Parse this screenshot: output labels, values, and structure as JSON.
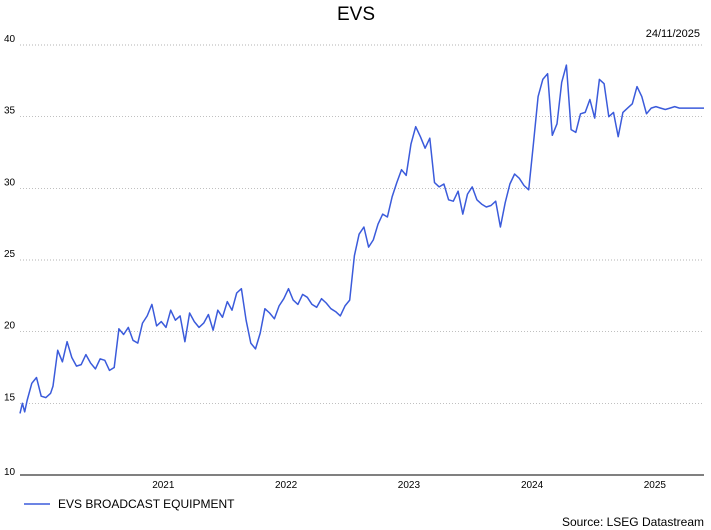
{
  "chart_data": {
    "type": "line",
    "title": "EVS",
    "date_label": "24/11/2025",
    "source": "Source: LSEG Datastream",
    "xlabel": "",
    "ylabel": "",
    "ylim": [
      10,
      40
    ],
    "yticks": [
      10,
      15,
      20,
      25,
      30,
      35,
      40
    ],
    "xticks": [
      {
        "label": "2021",
        "date": "2021-07-01"
      },
      {
        "label": "2022",
        "date": "2022-07-01"
      },
      {
        "label": "2023",
        "date": "2023-07-01"
      },
      {
        "label": "2024",
        "date": "2024-07-01"
      },
      {
        "label": "2025",
        "date": "2025-07-01"
      }
    ],
    "xlim": [
      "2020-05-01",
      "2025-11-24"
    ],
    "grid": true,
    "legend_position": "bottom-left",
    "color": "#3b5bdb",
    "series": [
      {
        "name": "EVS BROADCAST EQUIPMENT",
        "x": [
          "2020-05-01",
          "2020-05-08",
          "2020-05-15",
          "2020-05-22",
          "2020-06-05",
          "2020-06-19",
          "2020-07-03",
          "2020-07-17",
          "2020-07-31",
          "2020-08-07",
          "2020-08-21",
          "2020-09-04",
          "2020-09-18",
          "2020-10-02",
          "2020-10-16",
          "2020-10-30",
          "2020-11-13",
          "2020-11-27",
          "2020-12-11",
          "2020-12-25",
          "2021-01-08",
          "2021-01-22",
          "2021-02-05",
          "2021-02-19",
          "2021-03-05",
          "2021-03-19",
          "2021-04-02",
          "2021-04-16",
          "2021-04-30",
          "2021-05-14",
          "2021-05-28",
          "2021-06-11",
          "2021-06-25",
          "2021-07-09",
          "2021-07-23",
          "2021-08-06",
          "2021-08-20",
          "2021-09-03",
          "2021-09-17",
          "2021-10-01",
          "2021-10-15",
          "2021-10-29",
          "2021-11-12",
          "2021-11-26",
          "2021-12-10",
          "2021-12-24",
          "2022-01-07",
          "2022-01-21",
          "2022-02-04",
          "2022-02-18",
          "2022-03-04",
          "2022-03-18",
          "2022-04-01",
          "2022-04-15",
          "2022-04-29",
          "2022-05-13",
          "2022-05-27",
          "2022-06-10",
          "2022-06-24",
          "2022-07-08",
          "2022-07-22",
          "2022-08-05",
          "2022-08-19",
          "2022-09-02",
          "2022-09-16",
          "2022-09-30",
          "2022-10-14",
          "2022-10-28",
          "2022-11-11",
          "2022-11-25",
          "2022-12-09",
          "2022-12-23",
          "2023-01-06",
          "2023-01-20",
          "2023-02-03",
          "2023-02-17",
          "2023-03-03",
          "2023-03-17",
          "2023-03-31",
          "2023-04-14",
          "2023-04-28",
          "2023-05-12",
          "2023-05-26",
          "2023-06-09",
          "2023-06-23",
          "2023-07-07",
          "2023-07-21",
          "2023-08-04",
          "2023-08-18",
          "2023-09-01",
          "2023-09-15",
          "2023-09-29",
          "2023-10-13",
          "2023-10-27",
          "2023-11-10",
          "2023-11-24",
          "2023-12-08",
          "2023-12-22",
          "2024-01-05",
          "2024-01-19",
          "2024-02-02",
          "2024-02-16",
          "2024-03-01",
          "2024-03-15",
          "2024-03-29",
          "2024-04-12",
          "2024-04-26",
          "2024-05-10",
          "2024-05-24",
          "2024-06-07",
          "2024-06-21",
          "2024-07-05",
          "2024-07-19",
          "2024-08-02",
          "2024-08-16",
          "2024-08-30",
          "2024-09-13",
          "2024-09-27",
          "2024-10-11",
          "2024-10-25",
          "2024-11-08",
          "2024-11-22",
          "2024-12-06",
          "2024-12-20",
          "2025-01-03",
          "2025-01-17",
          "2025-01-31",
          "2025-02-14",
          "2025-02-28",
          "2025-03-14",
          "2025-03-28",
          "2025-04-11",
          "2025-04-25",
          "2025-05-09",
          "2025-05-23",
          "2025-06-06",
          "2025-06-20",
          "2025-07-04",
          "2025-07-18",
          "2025-08-01",
          "2025-08-15",
          "2025-08-29",
          "2025-09-12",
          "2025-09-26",
          "2025-10-10",
          "2025-10-24",
          "2025-11-07",
          "2025-11-24"
        ],
        "values": [
          14.3,
          15.0,
          14.4,
          15.2,
          16.4,
          16.8,
          15.5,
          15.4,
          15.7,
          16.2,
          18.7,
          17.9,
          19.3,
          18.2,
          17.6,
          17.7,
          18.4,
          17.8,
          17.4,
          18.1,
          18.0,
          17.3,
          17.5,
          20.2,
          19.8,
          20.3,
          19.4,
          19.2,
          20.6,
          21.1,
          21.9,
          20.4,
          20.7,
          20.3,
          21.5,
          20.8,
          21.1,
          19.3,
          21.3,
          20.7,
          20.3,
          20.6,
          21.2,
          20.1,
          21.5,
          21.0,
          22.1,
          21.5,
          22.7,
          23.0,
          20.8,
          19.2,
          18.8,
          19.9,
          21.6,
          21.3,
          20.9,
          21.8,
          22.3,
          23.0,
          22.2,
          21.9,
          22.6,
          22.4,
          21.9,
          21.7,
          22.3,
          22.0,
          21.6,
          21.4,
          21.1,
          21.8,
          22.2,
          25.3,
          26.8,
          27.3,
          25.9,
          26.4,
          27.5,
          28.2,
          28.0,
          29.4,
          30.4,
          31.3,
          30.9,
          33.1,
          34.3,
          33.6,
          32.8,
          33.5,
          30.4,
          30.1,
          30.3,
          29.2,
          29.1,
          29.8,
          28.2,
          29.6,
          30.1,
          29.2,
          28.9,
          28.7,
          28.8,
          29.1,
          27.3,
          29.0,
          30.3,
          31.0,
          30.7,
          30.2,
          29.9,
          33.1,
          36.4,
          37.6,
          38.0,
          33.7,
          34.5,
          37.4,
          38.6,
          34.1,
          33.9,
          35.2,
          35.3,
          36.2,
          34.9,
          37.6,
          37.3,
          35.0,
          35.3,
          33.6,
          35.3,
          35.6,
          35.9,
          37.1,
          36.4,
          35.2,
          35.6,
          35.7,
          35.6,
          35.5,
          35.6,
          35.7,
          35.6,
          35.6,
          35.6,
          35.6,
          35.6,
          35.6
        ]
      }
    ]
  }
}
